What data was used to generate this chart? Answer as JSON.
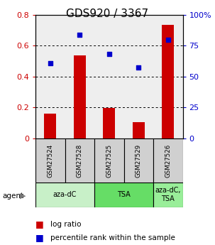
{
  "title": "GDS920 / 3367",
  "samples": [
    "GSM27524",
    "GSM27528",
    "GSM27525",
    "GSM27529",
    "GSM27526"
  ],
  "log_ratio": [
    0.16,
    0.535,
    0.195,
    0.105,
    0.735
  ],
  "percentile_rank": [
    0.61,
    0.84,
    0.68,
    0.575,
    0.8
  ],
  "bar_color": "#cc0000",
  "dot_color": "#0000cc",
  "ylim_left": [
    0,
    0.8
  ],
  "ylim_right": [
    0,
    1.0
  ],
  "yticks_left": [
    0,
    0.2,
    0.4,
    0.6,
    0.8
  ],
  "ytick_labels_left": [
    "0",
    "0.2",
    "0.4",
    "0.6",
    "0.8"
  ],
  "yticks_right": [
    0,
    0.25,
    0.5,
    0.75,
    1.0
  ],
  "ytick_labels_right": [
    "0",
    "25",
    "50",
    "75",
    "100%"
  ],
  "agent_labels": [
    "aza-dC",
    "TSA",
    "aza-dC,\nTSA"
  ],
  "agent_groups": [
    [
      0,
      1
    ],
    [
      2,
      3
    ],
    [
      4
    ]
  ],
  "agent_bg_colors": [
    "#c8f0c8",
    "#66dd66",
    "#99ee99"
  ],
  "title_fontsize": 11,
  "axis_fontsize": 8,
  "bar_width": 0.4,
  "sample_box_color": "#d0d0d0",
  "plot_bg": "#eeeeee"
}
